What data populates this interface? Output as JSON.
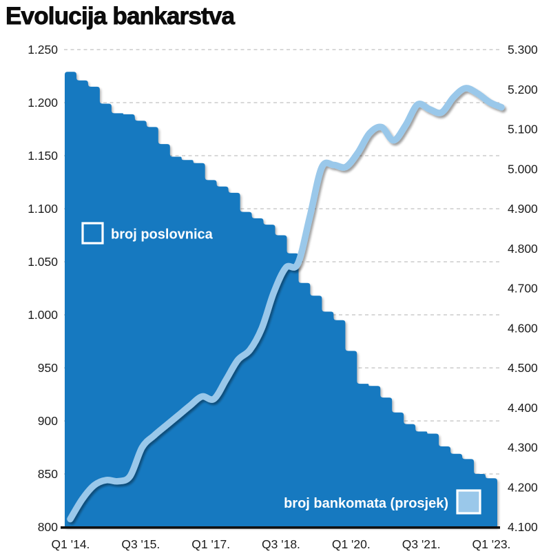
{
  "title": "Evolucija bankarstva",
  "chart_data": {
    "type": "combo",
    "subtypes": [
      "step-area",
      "smooth-line"
    ],
    "frequency": "quarterly",
    "x_start": "Q1 2014",
    "x_end": "Q1 2023",
    "x_ticks": [
      "Q1 '14.",
      "Q3 '15.",
      "Q1 '17.",
      "Q3 '18.",
      "Q1 '20.",
      "Q3 '21.",
      "Q1 '23."
    ],
    "x_tick_quarter_indices": [
      0,
      6,
      12,
      18,
      24,
      30,
      36
    ],
    "left_axis": {
      "min": 800,
      "max": 1250,
      "tick_step": 50,
      "ticks": [
        "1.250",
        "1.200",
        "1.150",
        "1.100",
        "1.050",
        "1.000",
        "950",
        "900",
        "850",
        "800"
      ]
    },
    "right_axis": {
      "min": 4100,
      "max": 5300,
      "tick_step": 100,
      "ticks": [
        "5.300",
        "5.200",
        "5.100",
        "5.000",
        "4.900",
        "4.800",
        "4.700",
        "4.600",
        "4.500",
        "4.400",
        "4.300",
        "4.200",
        "4.100"
      ]
    },
    "grid": "dashed horizontal",
    "legend": {
      "branches_position": "inside area, upper left",
      "atms_position": "inside area, lower right"
    },
    "series": [
      {
        "name": "broj poslovnica",
        "axis": "left",
        "style": "step-area",
        "color": "#1879c0",
        "values": [
          1229,
          1221,
          1215,
          1199,
          1190,
          1189,
          1183,
          1177,
          1161,
          1149,
          1146,
          1143,
          1127,
          1121,
          1115,
          1097,
          1091,
          1085,
          1075,
          1058,
          1030,
          1018,
          1003,
          995,
          966,
          935,
          933,
          922,
          908,
          897,
          890,
          888,
          876,
          869,
          864,
          850,
          846
        ]
      },
      {
        "name": "broj bankomata (prosjek)",
        "axis": "right",
        "style": "smooth-line",
        "color": "#9ac8ea",
        "values": [
          4120,
          4170,
          4205,
          4218,
          4215,
          4228,
          4300,
          4330,
          4355,
          4380,
          4405,
          4428,
          4422,
          4470,
          4520,
          4545,
          4600,
          4690,
          4752,
          4762,
          4880,
          5004,
          5010,
          5005,
          5040,
          5090,
          5105,
          5072,
          5110,
          5162,
          5150,
          5142,
          5180,
          5203,
          5190,
          5168,
          5155
        ]
      }
    ],
    "colors": {
      "background": "#ffffff",
      "grid": "#cccccc",
      "axis_text": "#1c1c1c",
      "baseline": "#101010",
      "title_text": "#0c0c0c",
      "legend_text": "#ffffff",
      "legend_swatch_border": "#ffffff"
    }
  }
}
